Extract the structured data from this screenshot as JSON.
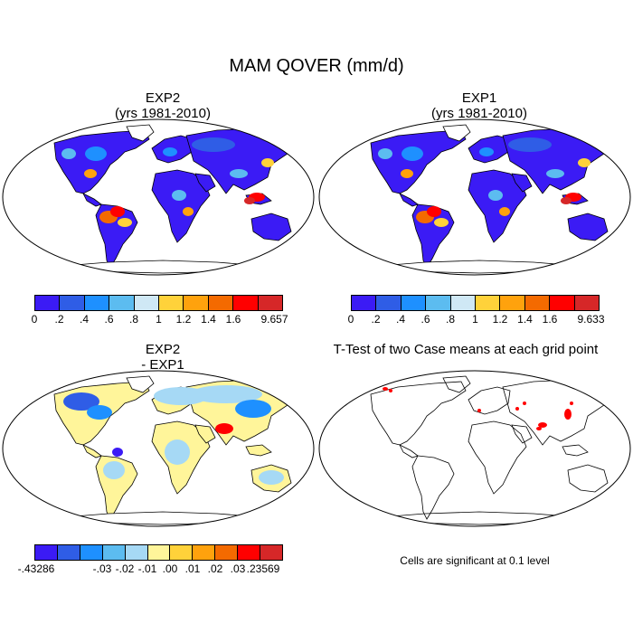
{
  "figure": {
    "title": "MAM QOVER (mm/d)"
  },
  "panels": {
    "exp2": {
      "title_line1": "EXP2",
      "title_line2": "(yrs 1981-2010)"
    },
    "exp1": {
      "title_line1": "EXP1",
      "title_line2": "(yrs 1981-2010)"
    },
    "diff": {
      "title_line1": "EXP2",
      "title_line2": "- EXP1"
    },
    "ttest": {
      "title": "T-Test of two Case means at each grid point",
      "note": "Cells are significant at 0.1 level"
    }
  },
  "colorbars": {
    "exp2": {
      "colors": [
        "#3b1bf5",
        "#2f5de6",
        "#1e90ff",
        "#5cbcf0",
        "#cfe8f5",
        "#ffd23a",
        "#ffa20d",
        "#f46a00",
        "#ff0000",
        "#d62728"
      ],
      "labels": [
        "0",
        ".2",
        ".4",
        ".6",
        ".8",
        "1",
        "1.2",
        "1.4",
        "1.6",
        "9.657"
      ]
    },
    "exp1": {
      "colors": [
        "#3b1bf5",
        "#2f5de6",
        "#1e90ff",
        "#5cbcf0",
        "#cfe8f5",
        "#ffd23a",
        "#ffa20d",
        "#f46a00",
        "#ff0000",
        "#d62728"
      ],
      "labels": [
        "0",
        ".2",
        ".4",
        ".6",
        ".8",
        "1",
        "1.2",
        "1.4",
        "1.6",
        "9.633"
      ]
    },
    "diff": {
      "colors": [
        "#3b1bf5",
        "#2f5de6",
        "#1e90ff",
        "#5cbcf0",
        "#a6d9f5",
        "#fff59a",
        "#ffd23a",
        "#ffa20d",
        "#f46a00",
        "#ff0000",
        "#d62728"
      ],
      "labels": [
        "-.43286",
        "-.03",
        "-.02",
        "-.01",
        ".00",
        ".01",
        ".02",
        ".03",
        ".23569"
      ]
    }
  }
}
